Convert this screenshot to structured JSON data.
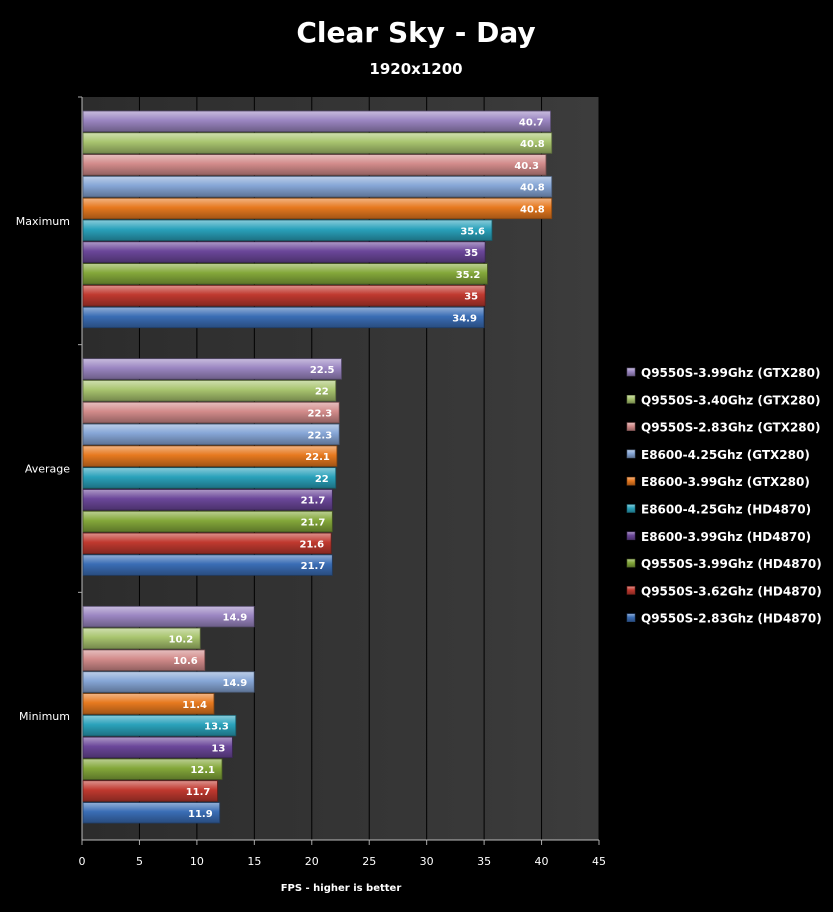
{
  "chart_data": {
    "type": "bar",
    "orientation": "horizontal",
    "title": "Clear Sky - Day",
    "subtitle": "1920x1200",
    "xlabel": "FPS - higher is better",
    "xlim": [
      0,
      45
    ],
    "xticks": [
      0,
      5,
      10,
      15,
      20,
      25,
      30,
      35,
      40,
      45
    ],
    "grid": true,
    "legend_position": "right",
    "categories": [
      "Maximum",
      "Average",
      "Minimum"
    ],
    "series": [
      {
        "name": "Q9550S-3.99Ghz (GTX280)",
        "color": "#9b86c2",
        "values": [
          40.7,
          22.5,
          14.9
        ]
      },
      {
        "name": "Q9550S-3.40Ghz (GTX280)",
        "color": "#a8c46e",
        "values": [
          40.8,
          22,
          10.2
        ]
      },
      {
        "name": "Q9550S-2.83Ghz (GTX280)",
        "color": "#d28b8a",
        "values": [
          40.3,
          22.3,
          10.6
        ]
      },
      {
        "name": "E8600-4.25Ghz (GTX280)",
        "color": "#86a6d6",
        "values": [
          40.8,
          22.3,
          14.9
        ]
      },
      {
        "name": "E8600-3.99Ghz (GTX280)",
        "color": "#e7791f",
        "values": [
          40.8,
          22.1,
          11.4
        ]
      },
      {
        "name": "E8600-4.25Ghz (HD4870)",
        "color": "#2aa2bb",
        "values": [
          35.6,
          22,
          13.3
        ]
      },
      {
        "name": "E8600-3.99Ghz (HD4870)",
        "color": "#6b479a",
        "values": [
          35,
          21.7,
          13
        ]
      },
      {
        "name": "Q9550S-3.99Ghz (HD4870)",
        "color": "#84a83a",
        "values": [
          35.2,
          21.7,
          12.1
        ]
      },
      {
        "name": "Q9550S-3.62Ghz (HD4870)",
        "color": "#c0392f",
        "values": [
          35,
          21.6,
          11.7
        ]
      },
      {
        "name": "Q9550S-2.83Ghz (HD4870)",
        "color": "#3a6db5",
        "values": [
          34.9,
          21.7,
          11.9
        ]
      }
    ]
  }
}
